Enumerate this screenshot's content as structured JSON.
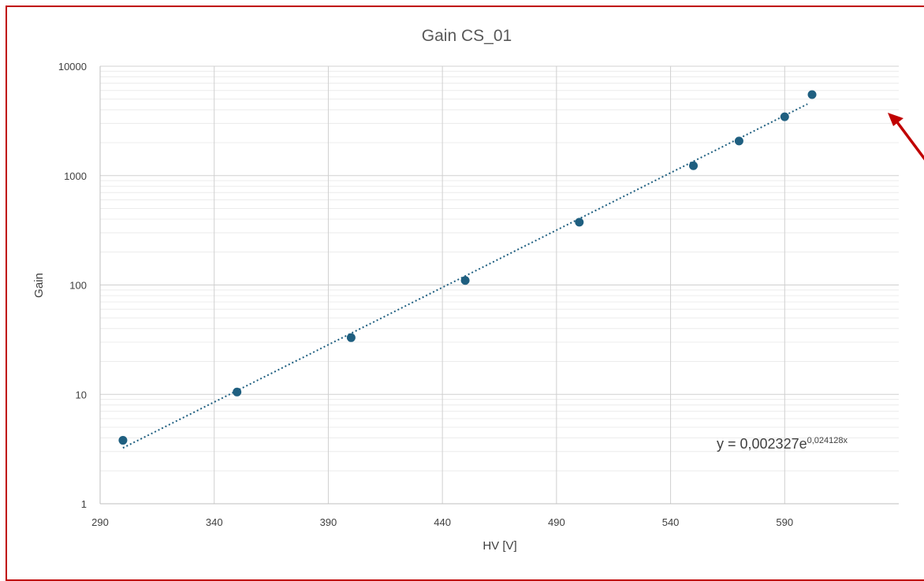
{
  "chart_data": {
    "type": "scatter",
    "title": "Gain CS_01",
    "xlabel": "HV [V]",
    "ylabel": "Gain",
    "y_scale": "log",
    "xlim": [
      290,
      640
    ],
    "ylim": [
      1,
      10000
    ],
    "x_ticks": [
      "290",
      "340",
      "390",
      "440",
      "490",
      "540",
      "590"
    ],
    "y_ticks": [
      "1",
      "10",
      "100",
      "1000",
      "10000"
    ],
    "grid": true,
    "legend": "none",
    "series": [
      {
        "x": [
          300,
          350,
          400,
          450,
          500,
          550,
          570,
          590,
          602
        ],
        "y": [
          3.8,
          10.5,
          33,
          110,
          375,
          1230,
          2070,
          3450,
          5500
        ],
        "color": "#1f5f80"
      }
    ],
    "trendline": {
      "type": "exponential",
      "a": 0.002327,
      "b": 0.024128,
      "x_range": [
        300,
        600
      ],
      "color": "#1f5f80",
      "style": "dotted"
    },
    "equation": {
      "prefix": "y = 0,002327e",
      "exponent": "0,024128x"
    },
    "annotation_arrow_color": "#c00000"
  }
}
